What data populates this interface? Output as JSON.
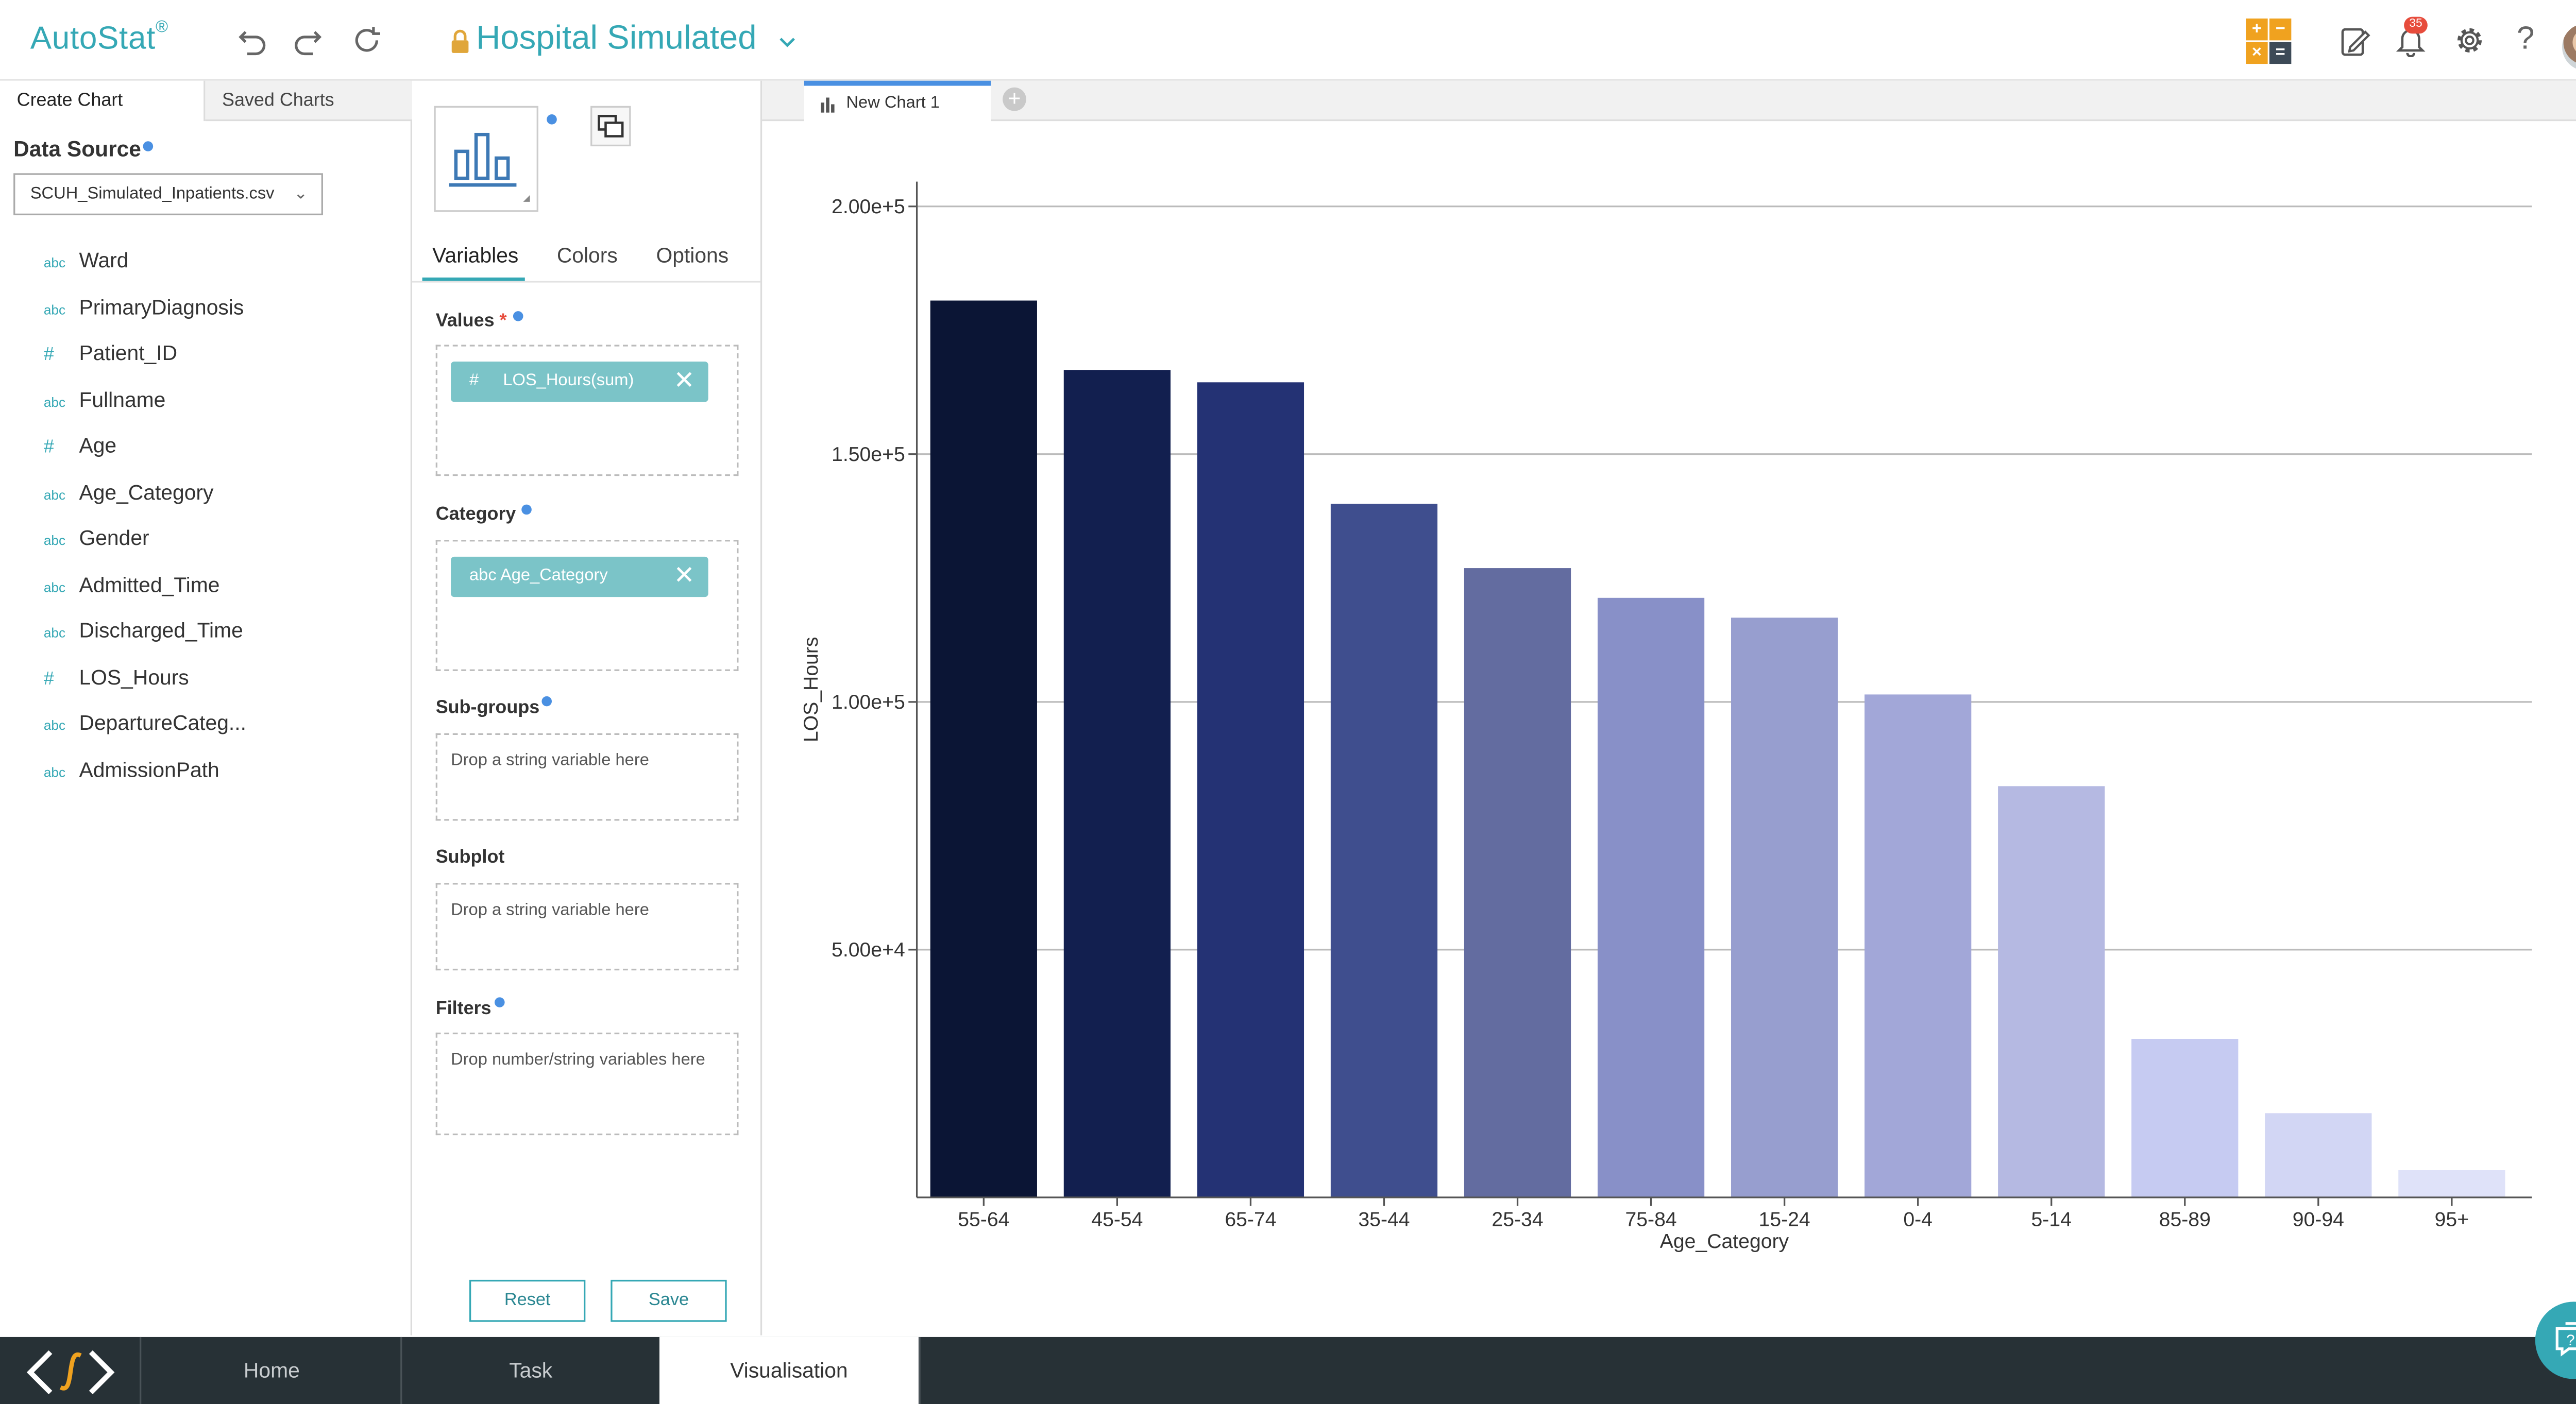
{
  "app": {
    "name": "AutoStat",
    "reg": "®"
  },
  "header": {
    "project": "Hospital Simulated",
    "notifications_count": "35",
    "icons": [
      "undo-icon",
      "redo-icon",
      "refresh-icon",
      "calculator-icon",
      "notes-icon",
      "bell-icon",
      "gear-icon",
      "help-icon",
      "avatar"
    ]
  },
  "left_panel": {
    "tabs": [
      "Create Chart",
      "Saved Charts"
    ],
    "data_source_label": "Data Source",
    "data_source_value": "SCUH_Simulated_Inpatients.csv",
    "variables": [
      {
        "type": "abc",
        "name": "Ward"
      },
      {
        "type": "abc",
        "name": "PrimaryDiagnosis"
      },
      {
        "type": "#",
        "name": "Patient_ID"
      },
      {
        "type": "abc",
        "name": "Fullname"
      },
      {
        "type": "#",
        "name": "Age"
      },
      {
        "type": "abc",
        "name": "Age_Category"
      },
      {
        "type": "abc",
        "name": "Gender"
      },
      {
        "type": "abc",
        "name": "Admitted_Time"
      },
      {
        "type": "abc",
        "name": "Discharged_Time"
      },
      {
        "type": "#",
        "name": "LOS_Hours"
      },
      {
        "type": "abc",
        "name": "DepartureCateg..."
      },
      {
        "type": "abc",
        "name": "AdmissionPath"
      }
    ]
  },
  "mid_panel": {
    "tabs": [
      "Variables",
      "Colors",
      "Options"
    ],
    "values_label": "Values",
    "required_mark": "*",
    "values_pill_type": "#",
    "values_pill": "LOS_Hours(sum)",
    "category_label": "Category",
    "category_pill": "abc Age_Category",
    "subgroups_label": "Sub-groups",
    "subgroups_placeholder": "Drop a string variable here",
    "subplot_label": "Subplot",
    "subplot_placeholder": "Drop a string variable here",
    "filters_label": "Filters",
    "filters_placeholder": "Drop number/string variables here",
    "reset_label": "Reset",
    "save_label": "Save"
  },
  "chart_tab": {
    "label": "New Chart 1",
    "add": "+"
  },
  "chart_data": {
    "type": "bar",
    "title": "",
    "xlabel": "Age_Category",
    "ylabel": "LOS_Hours",
    "categories": [
      "55-64",
      "45-54",
      "65-74",
      "35-44",
      "25-34",
      "75-84",
      "15-24",
      "0-4",
      "5-14",
      "85-89",
      "90-94",
      "95+"
    ],
    "values": [
      181000,
      167000,
      164500,
      140000,
      127000,
      121000,
      117000,
      101500,
      83000,
      32000,
      17000,
      5500
    ],
    "ylim": [
      0,
      205000
    ],
    "yticks": [
      50000,
      100000,
      150000,
      200000
    ],
    "ytick_labels": [
      "5.00e+4",
      "1.00e+5",
      "1.50e+5",
      "2.00e+5"
    ],
    "grid": true,
    "colors": [
      "#0b1535",
      "#121f4f",
      "#243274",
      "#3f4e8e",
      "#636ca0",
      "#8890c8",
      "#979ecf",
      "#a2a7d8",
      "#b5b9e2",
      "#c6cbf2",
      "#d2d6f4",
      "#dfe2f9"
    ]
  },
  "bottom_nav": {
    "tabs": [
      "Home",
      "Task",
      "Visualisation"
    ],
    "active": "Visualisation"
  },
  "colors": {
    "accent": "#35a8b5",
    "dark_bar": "#273136",
    "info_dot": "#4a90e2"
  }
}
